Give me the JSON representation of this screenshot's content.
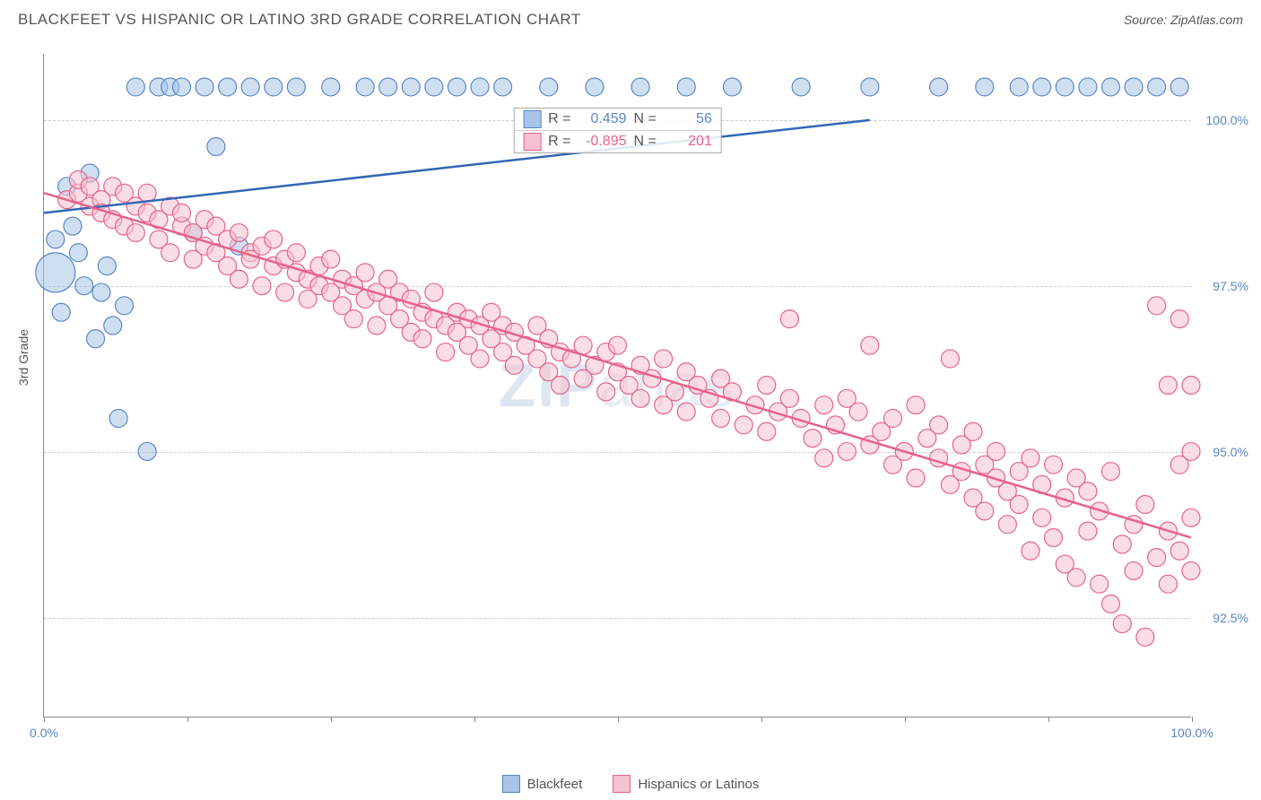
{
  "header": {
    "title": "BLACKFEET VS HISPANIC OR LATINO 3RD GRADE CORRELATION CHART",
    "source": "Source: ZipAtlas.com"
  },
  "watermark": {
    "left": "ZIP",
    "right": "atlas"
  },
  "chart": {
    "type": "scatter",
    "y_axis_title": "3rd Grade",
    "xlim": [
      0,
      100
    ],
    "ylim": [
      91,
      101
    ],
    "x_ticks": [
      0,
      12.5,
      25,
      37.5,
      50,
      62.5,
      75,
      87.5,
      100
    ],
    "x_tick_labels": {
      "0": "0.0%",
      "100": "100.0%"
    },
    "y_ticks": [
      92.5,
      95.0,
      97.5,
      100.0
    ],
    "y_tick_labels": [
      "92.5%",
      "95.0%",
      "97.5%",
      "100.0%"
    ],
    "background_color": "#ffffff",
    "grid_color": "#cccccc",
    "marker_radius": 10,
    "marker_opacity": 0.55,
    "series": [
      {
        "id": "blackfeet",
        "label": "Blackfeet",
        "fill": "#a8c4e8",
        "stroke": "#5b86c5",
        "line_color": "#3466b6",
        "R": "0.459",
        "N": "56",
        "regression": {
          "x1": 0,
          "y1": 98.6,
          "x2": 72,
          "y2": 100.0
        },
        "points": [
          [
            1,
            98.2
          ],
          [
            1.5,
            97.1
          ],
          [
            2,
            99.0
          ],
          [
            2.5,
            98.4
          ],
          [
            3,
            98.0
          ],
          [
            3.5,
            97.5
          ],
          [
            4,
            99.2
          ],
          [
            4.5,
            96.7
          ],
          [
            5,
            97.4
          ],
          [
            5.5,
            97.8
          ],
          [
            6,
            96.9
          ],
          [
            6.5,
            95.5
          ],
          [
            7,
            97.2
          ],
          [
            8,
            100.5
          ],
          [
            9,
            95.0
          ],
          [
            10,
            100.5
          ],
          [
            11,
            100.5
          ],
          [
            12,
            100.5
          ],
          [
            13,
            98.3
          ],
          [
            14,
            100.5
          ],
          [
            15,
            99.6
          ],
          [
            16,
            100.5
          ],
          [
            17,
            98.1
          ],
          [
            18,
            100.5
          ],
          [
            20,
            100.5
          ],
          [
            22,
            100.5
          ],
          [
            25,
            100.5
          ],
          [
            28,
            100.5
          ],
          [
            30,
            100.5
          ],
          [
            32,
            100.5
          ],
          [
            34,
            100.5
          ],
          [
            36,
            100.5
          ],
          [
            38,
            100.5
          ],
          [
            40,
            100.5
          ],
          [
            44,
            100.5
          ],
          [
            48,
            100.5
          ],
          [
            52,
            100.5
          ],
          [
            56,
            100.5
          ],
          [
            60,
            100.5
          ],
          [
            66,
            100.5
          ],
          [
            72,
            100.5
          ],
          [
            78,
            100.5
          ],
          [
            82,
            100.5
          ],
          [
            85,
            100.5
          ],
          [
            87,
            100.5
          ],
          [
            89,
            100.5
          ],
          [
            91,
            100.5
          ],
          [
            93,
            100.5
          ],
          [
            95,
            100.5
          ],
          [
            97,
            100.5
          ],
          [
            99,
            100.5
          ]
        ],
        "big_points": [
          [
            1,
            97.7,
            22
          ]
        ]
      },
      {
        "id": "hispanics",
        "label": "Hispanics or Latinos",
        "fill": "#f7c1cf",
        "stroke": "#e7628a",
        "line_color": "#e7628a",
        "R": "-0.895",
        "N": "201",
        "regression": {
          "x1": 0,
          "y1": 98.9,
          "x2": 100,
          "y2": 93.7
        },
        "points": [
          [
            2,
            98.8
          ],
          [
            3,
            98.9
          ],
          [
            3,
            99.1
          ],
          [
            4,
            98.7
          ],
          [
            4,
            99.0
          ],
          [
            5,
            98.8
          ],
          [
            5,
            98.6
          ],
          [
            6,
            99.0
          ],
          [
            6,
            98.5
          ],
          [
            7,
            98.9
          ],
          [
            7,
            98.4
          ],
          [
            8,
            98.7
          ],
          [
            8,
            98.3
          ],
          [
            9,
            98.6
          ],
          [
            9,
            98.9
          ],
          [
            10,
            98.5
          ],
          [
            10,
            98.2
          ],
          [
            11,
            98.7
          ],
          [
            11,
            98.0
          ],
          [
            12,
            98.4
          ],
          [
            12,
            98.6
          ],
          [
            13,
            98.3
          ],
          [
            13,
            97.9
          ],
          [
            14,
            98.5
          ],
          [
            14,
            98.1
          ],
          [
            15,
            98.0
          ],
          [
            15,
            98.4
          ],
          [
            16,
            98.2
          ],
          [
            16,
            97.8
          ],
          [
            17,
            98.3
          ],
          [
            17,
            97.6
          ],
          [
            18,
            98.0
          ],
          [
            18,
            97.9
          ],
          [
            19,
            98.1
          ],
          [
            19,
            97.5
          ],
          [
            20,
            97.8
          ],
          [
            20,
            98.2
          ],
          [
            21,
            97.9
          ],
          [
            21,
            97.4
          ],
          [
            22,
            97.7
          ],
          [
            22,
            98.0
          ],
          [
            23,
            97.6
          ],
          [
            23,
            97.3
          ],
          [
            24,
            97.8
          ],
          [
            24,
            97.5
          ],
          [
            25,
            97.4
          ],
          [
            25,
            97.9
          ],
          [
            26,
            97.6
          ],
          [
            26,
            97.2
          ],
          [
            27,
            97.5
          ],
          [
            27,
            97.0
          ],
          [
            28,
            97.3
          ],
          [
            28,
            97.7
          ],
          [
            29,
            97.4
          ],
          [
            29,
            96.9
          ],
          [
            30,
            97.2
          ],
          [
            30,
            97.6
          ],
          [
            31,
            97.0
          ],
          [
            31,
            97.4
          ],
          [
            32,
            96.8
          ],
          [
            32,
            97.3
          ],
          [
            33,
            97.1
          ],
          [
            33,
            96.7
          ],
          [
            34,
            97.0
          ],
          [
            34,
            97.4
          ],
          [
            35,
            96.9
          ],
          [
            35,
            96.5
          ],
          [
            36,
            97.1
          ],
          [
            36,
            96.8
          ],
          [
            37,
            96.6
          ],
          [
            37,
            97.0
          ],
          [
            38,
            96.9
          ],
          [
            38,
            96.4
          ],
          [
            39,
            96.7
          ],
          [
            39,
            97.1
          ],
          [
            40,
            96.5
          ],
          [
            40,
            96.9
          ],
          [
            41,
            96.3
          ],
          [
            41,
            96.8
          ],
          [
            42,
            96.6
          ],
          [
            43,
            96.4
          ],
          [
            43,
            96.9
          ],
          [
            44,
            96.7
          ],
          [
            44,
            96.2
          ],
          [
            45,
            96.5
          ],
          [
            45,
            96.0
          ],
          [
            46,
            96.4
          ],
          [
            47,
            96.6
          ],
          [
            47,
            96.1
          ],
          [
            48,
            96.3
          ],
          [
            49,
            96.5
          ],
          [
            49,
            95.9
          ],
          [
            50,
            96.2
          ],
          [
            50,
            96.6
          ],
          [
            51,
            96.0
          ],
          [
            52,
            96.3
          ],
          [
            52,
            95.8
          ],
          [
            53,
            96.1
          ],
          [
            54,
            96.4
          ],
          [
            54,
            95.7
          ],
          [
            55,
            95.9
          ],
          [
            56,
            96.2
          ],
          [
            56,
            95.6
          ],
          [
            57,
            96.0
          ],
          [
            58,
            95.8
          ],
          [
            59,
            95.5
          ],
          [
            59,
            96.1
          ],
          [
            60,
            95.9
          ],
          [
            61,
            95.4
          ],
          [
            62,
            95.7
          ],
          [
            63,
            96.0
          ],
          [
            63,
            95.3
          ],
          [
            64,
            95.6
          ],
          [
            65,
            95.8
          ],
          [
            65,
            97.0
          ],
          [
            66,
            95.5
          ],
          [
            67,
            95.2
          ],
          [
            68,
            95.7
          ],
          [
            68,
            94.9
          ],
          [
            69,
            95.4
          ],
          [
            70,
            95.0
          ],
          [
            70,
            95.8
          ],
          [
            71,
            95.6
          ],
          [
            72,
            95.1
          ],
          [
            72,
            96.6
          ],
          [
            73,
            95.3
          ],
          [
            74,
            94.8
          ],
          [
            74,
            95.5
          ],
          [
            75,
            95.0
          ],
          [
            76,
            95.7
          ],
          [
            76,
            94.6
          ],
          [
            77,
            95.2
          ],
          [
            78,
            94.9
          ],
          [
            78,
            95.4
          ],
          [
            79,
            94.5
          ],
          [
            79,
            96.4
          ],
          [
            80,
            95.1
          ],
          [
            80,
            94.7
          ],
          [
            81,
            94.3
          ],
          [
            81,
            95.3
          ],
          [
            82,
            94.8
          ],
          [
            82,
            94.1
          ],
          [
            83,
            94.6
          ],
          [
            83,
            95.0
          ],
          [
            84,
            94.4
          ],
          [
            84,
            93.9
          ],
          [
            85,
            94.7
          ],
          [
            85,
            94.2
          ],
          [
            86,
            94.9
          ],
          [
            86,
            93.5
          ],
          [
            87,
            94.0
          ],
          [
            87,
            94.5
          ],
          [
            88,
            93.7
          ],
          [
            88,
            94.8
          ],
          [
            89,
            94.3
          ],
          [
            89,
            93.3
          ],
          [
            90,
            94.6
          ],
          [
            90,
            93.1
          ],
          [
            91,
            93.8
          ],
          [
            91,
            94.4
          ],
          [
            92,
            93.0
          ],
          [
            92,
            94.1
          ],
          [
            93,
            94.7
          ],
          [
            93,
            92.7
          ],
          [
            94,
            93.6
          ],
          [
            94,
            92.4
          ],
          [
            95,
            93.9
          ],
          [
            95,
            93.2
          ],
          [
            96,
            94.2
          ],
          [
            96,
            92.2
          ],
          [
            97,
            93.4
          ],
          [
            97,
            97.2
          ],
          [
            98,
            93.8
          ],
          [
            98,
            93.0
          ],
          [
            98,
            96.0
          ],
          [
            99,
            93.5
          ],
          [
            99,
            97.0
          ],
          [
            99,
            94.8
          ],
          [
            100,
            94.0
          ],
          [
            100,
            93.2
          ],
          [
            100,
            95.0
          ],
          [
            100,
            96.0
          ]
        ]
      }
    ]
  },
  "stats_box": {
    "r_label": "R =",
    "n_label": "N ="
  },
  "legend": {
    "items": [
      {
        "ref": 0
      },
      {
        "ref": 1
      }
    ]
  }
}
